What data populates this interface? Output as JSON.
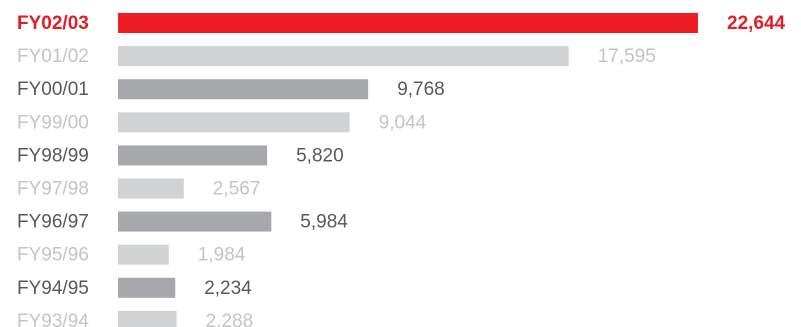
{
  "chart_data": {
    "type": "bar",
    "orientation": "horizontal",
    "title": "",
    "xlabel": "",
    "ylabel": "",
    "categories": [
      "FY02/03",
      "FY01/02",
      "FY00/01",
      "FY99/00",
      "FY98/99",
      "FY97/98",
      "FY96/97",
      "FY95/96",
      "FY94/95",
      "FY93/94"
    ],
    "values": [
      22644,
      17595,
      9768,
      9044,
      5820,
      2567,
      5984,
      1984,
      2234,
      2288
    ],
    "value_labels": [
      "22,644",
      "17,595",
      "9,768",
      "9,044",
      "5,820",
      "2,567",
      "5,984",
      "1,984",
      "2,234",
      "2,288"
    ],
    "styles": [
      "highlight",
      "light",
      "dark",
      "light",
      "dark",
      "light",
      "dark",
      "light",
      "dark",
      "light"
    ],
    "xlim": [
      0,
      22644
    ],
    "grid": false,
    "legend": "none"
  },
  "colors": {
    "highlight_bar": "#ee1c25",
    "highlight_text": "#e41e26",
    "dark_bar": "#a7a8ab",
    "dark_text": "#58595b",
    "light_bar": "#d1d2d4",
    "light_text": "#c3c4c6"
  }
}
